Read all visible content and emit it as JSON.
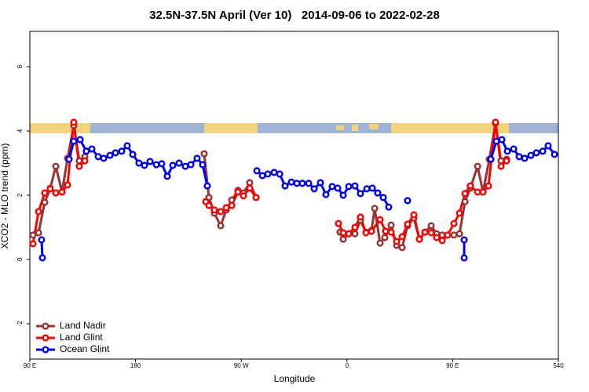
{
  "chart_data": {
    "type": "line",
    "title": "32.5N-37.5N April (Ver 10)   2014-09-06 to 2022-02-28",
    "xlabel": "Longitude",
    "ylabel": "XCO2 - MLO trend (ppm)",
    "xlim": [
      90,
      540
    ],
    "ylim": [
      -3.1,
      7.1
    ],
    "xticks": [
      {
        "value": 90,
        "label": "90 E"
      },
      180,
      {
        "value": 270,
        "label": "90 W"
      },
      {
        "value": 360,
        "label": "0"
      },
      {
        "value": 450,
        "label": "90 E"
      },
      540
    ],
    "yticks": [
      -2,
      0,
      2,
      4,
      6
    ],
    "legend": "lower left",
    "series": [
      {
        "name": "Land Nadir",
        "color": "#993333",
        "x": [
          92.7,
          97.4,
          102.7,
          107.4,
          112.1,
          117.4,
          122.1,
          127.4,
          132.1,
          136.8,
          null,
          238.4,
          242.5,
          247.1,
          252.5,
          257.2,
          261.9,
          267.2,
          271.9,
          277.2,
          282.6,
          null,
          354.1,
          356.8,
          361.5,
          366.8,
          371.5,
          376.2,
          380.9,
          383.6,
          388.2,
          392.2,
          397.6,
          402.3,
          407.0,
          411.6,
          417.0,
          421.7,
          426.4,
          431.7,
          436.4,
          441.1,
          445.7,
          451.1,
          455.8,
          460.5,
          465.1,
          471.2,
          475.8,
          481.2,
          486.5,
          491.2,
          495.9
        ],
        "values": [
          0.76,
          0.83,
          1.78,
          2.22,
          2.9,
          2.1,
          3.15,
          4.17,
          3.07,
          3.2,
          null,
          3.29,
          1.93,
          1.44,
          1.05,
          1.54,
          1.85,
          2.15,
          2.07,
          2.39,
          1.93,
          null,
          0.85,
          0.63,
          0.8,
          0.8,
          1.22,
          0.85,
          0.9,
          1.59,
          0.51,
          0.68,
          1.07,
          0.44,
          0.37,
          1.05,
          1.29,
          0.63,
          0.85,
          1.05,
          0.8,
          0.76,
          0.76,
          0.76,
          0.8,
          1.8,
          2.22,
          2.9,
          2.1,
          3.12,
          4.24,
          3.07,
          3.12
        ]
      },
      {
        "name": "Land Glint",
        "color": "#ff0000",
        "x": [
          92.7,
          97.4,
          102.7,
          107.4,
          112.1,
          117.4,
          122.1,
          127.4,
          132.1,
          136.8,
          null,
          239.8,
          242.5,
          247.1,
          252.5,
          257.2,
          261.9,
          267.2,
          271.9,
          277.2,
          282.6,
          null,
          352.8,
          356.8,
          361.5,
          366.8,
          371.5,
          376.2,
          380.9,
          388.2,
          392.9,
          397.6,
          402.3,
          407.0,
          411.6,
          417.0,
          421.7,
          426.4,
          431.7,
          436.4,
          441.1,
          445.7,
          451.1,
          455.8,
          460.5,
          465.1,
          471.2,
          475.8,
          480.5,
          486.5,
          491.2,
          495.9
        ],
        "values": [
          0.49,
          1.49,
          2.07,
          2.2,
          2.07,
          2.1,
          2.32,
          4.27,
          2.9,
          3.07,
          null,
          1.8,
          1.68,
          1.54,
          1.49,
          1.61,
          1.68,
          2.1,
          1.98,
          2.22,
          1.93,
          null,
          1.12,
          0.83,
          0.8,
          1.0,
          1.32,
          0.83,
          0.88,
          1.24,
          0.88,
          0.85,
          0.56,
          0.71,
          1.1,
          1.39,
          0.63,
          0.85,
          0.83,
          0.68,
          0.59,
          0.76,
          1.12,
          1.44,
          2.05,
          2.29,
          2.1,
          2.1,
          2.29,
          4.27,
          2.9,
          3.07
        ]
      },
      {
        "name": "Ocean Glint",
        "color": "#0000ee",
        "x": [
          100.0,
          100.7,
          null,
          123.4,
          127.4,
          132.8,
          138.1,
          142.8,
          148.2,
          152.9,
          158.2,
          162.9,
          168.2,
          172.9,
          177.6,
          182.9,
          187.6,
          192.3,
          197.7,
          202.3,
          207.0,
          211.7,
          217.1,
          222.4,
          227.1,
          232.4,
          237.1,
          241.1,
          null,
          283.3,
          288.0,
          292.6,
          298.0,
          302.7,
          307.3,
          312.7,
          317.4,
          322.0,
          327.4,
          332.1,
          337.4,
          342.1,
          347.4,
          352.1,
          356.8,
          361.5,
          366.8,
          371.5,
          376.9,
          381.6,
          386.2,
          390.9,
          395.6,
          null,
          411.6,
          null,
          459.8,
          459.8,
          null,
          482.5,
          487.2,
          491.9,
          496.6,
          501.9,
          506.6,
          511.3,
          516.6,
          521.3,
          526.7,
          531.3,
          536.7
        ],
        "values": [
          0.61,
          0.05,
          null,
          3.12,
          3.68,
          3.73,
          3.37,
          3.44,
          3.2,
          3.15,
          3.24,
          3.32,
          3.37,
          3.54,
          3.27,
          3.0,
          2.93,
          3.05,
          2.95,
          2.98,
          2.59,
          2.93,
          3.0,
          2.9,
          2.95,
          3.15,
          2.95,
          2.29,
          null,
          2.76,
          2.61,
          2.66,
          2.71,
          2.66,
          2.29,
          2.41,
          2.37,
          2.37,
          2.37,
          2.2,
          2.39,
          2.02,
          2.27,
          2.22,
          2.0,
          2.27,
          2.29,
          2.05,
          2.2,
          2.22,
          2.07,
          1.93,
          1.63,
          null,
          1.83,
          null,
          0.61,
          0.05,
          null,
          3.12,
          3.68,
          3.73,
          3.37,
          3.44,
          3.2,
          3.15,
          3.24,
          3.32,
          3.37,
          3.54,
          3.27
        ]
      }
    ]
  }
}
